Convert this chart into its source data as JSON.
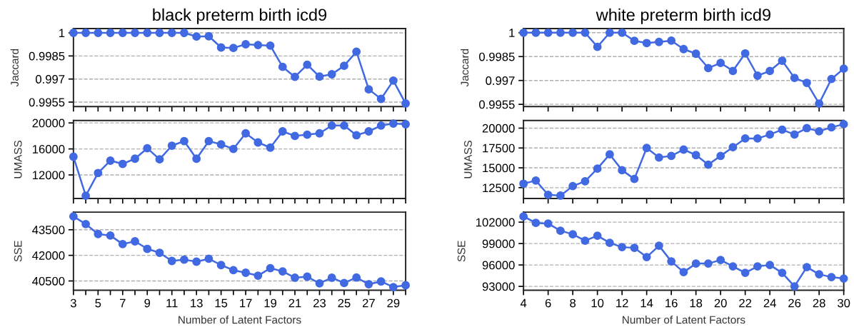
{
  "chart_data": [
    {
      "type": "line",
      "title": "black preterm birth icd9",
      "ylabel": "Jaccard",
      "x": [
        3,
        4,
        5,
        6,
        7,
        8,
        9,
        10,
        11,
        12,
        13,
        14,
        15,
        16,
        17,
        18,
        19,
        20,
        21,
        22,
        23,
        24,
        25,
        26,
        27,
        28,
        29,
        30
      ],
      "series": [
        {
          "color": "#4169e1",
          "values": [
            1,
            1,
            1,
            1,
            1,
            1,
            1,
            1,
            1,
            1,
            0.99976,
            0.99978,
            0.99905,
            0.99902,
            0.99926,
            0.99921,
            0.99917,
            0.99779,
            0.99714,
            0.99793,
            0.99716,
            0.99731,
            0.99786,
            0.99878,
            0.99633,
            0.99571,
            0.9969,
            0.99541
          ]
        }
      ],
      "xlim": [
        3,
        30
      ],
      "xticks": [
        3,
        {
          "value": 4,
          "label": null
        },
        5,
        {
          "value": 6,
          "label": null
        },
        7,
        {
          "value": 8,
          "label": null
        },
        9,
        {
          "value": 10,
          "label": null
        },
        11,
        {
          "value": 12,
          "label": null
        },
        13,
        {
          "value": 14,
          "label": null
        },
        15,
        {
          "value": 16,
          "label": null
        },
        17,
        {
          "value": 18,
          "label": null
        },
        19,
        {
          "value": 20,
          "label": null
        },
        21,
        {
          "value": 22,
          "label": null
        },
        23,
        {
          "value": 24,
          "label": null
        },
        25,
        {
          "value": 26,
          "label": null
        },
        27,
        {
          "value": 28,
          "label": null
        },
        29,
        {
          "value": 30,
          "label": null
        }
      ],
      "ylim": [
        0.99521,
        1.00028
      ],
      "yticks": [
        1,
        0.9985,
        0.997,
        0.9955
      ],
      "tick_labels": "y",
      "grid": "y",
      "marker": "circle",
      "line_style": "solid"
    },
    {
      "type": "line",
      "title": "white preterm birth icd9",
      "ylabel": "Jaccard",
      "x": [
        4,
        5,
        6,
        7,
        8,
        9,
        10,
        11,
        12,
        13,
        14,
        15,
        16,
        17,
        18,
        19,
        20,
        21,
        22,
        23,
        24,
        25,
        26,
        27,
        28,
        29,
        30
      ],
      "series": [
        {
          "color": "#4169e1",
          "values": [
            1,
            1,
            1,
            1,
            1,
            1,
            0.99911,
            1,
            1,
            0.99949,
            0.99935,
            0.99942,
            0.9995,
            0.99897,
            0.99868,
            0.99778,
            0.9981,
            0.9976,
            0.9987,
            0.9973,
            0.9976,
            0.99824,
            0.99716,
            0.99685,
            0.99555,
            0.99709,
            0.99774
          ]
        }
      ],
      "xlim": [
        4,
        30
      ],
      "xticks": [
        {
          "value": 4,
          "label": null
        },
        {
          "value": 6,
          "label": null
        },
        {
          "value": 8,
          "label": null
        },
        {
          "value": 10,
          "label": null
        },
        {
          "value": 12,
          "label": null
        },
        {
          "value": 14,
          "label": null
        },
        {
          "value": 16,
          "label": null
        },
        {
          "value": 18,
          "label": null
        },
        {
          "value": 20,
          "label": null
        },
        {
          "value": 22,
          "label": null
        },
        {
          "value": 24,
          "label": null
        },
        {
          "value": 26,
          "label": null
        },
        {
          "value": 28,
          "label": null
        },
        {
          "value": 30,
          "label": null
        }
      ],
      "ylim": [
        0.99536,
        1.00026
      ],
      "yticks": [
        1,
        0.9985,
        0.997,
        0.9955
      ],
      "tick_labels": "y",
      "grid": "y",
      "marker": "circle",
      "line_style": "solid"
    },
    {
      "type": "line",
      "ylabel": "UMASS",
      "x": [
        3,
        4,
        5,
        6,
        7,
        8,
        9,
        10,
        11,
        12,
        13,
        14,
        15,
        16,
        17,
        18,
        19,
        20,
        21,
        22,
        23,
        24,
        25,
        26,
        27,
        28,
        29,
        30
      ],
      "series": [
        {
          "color": "#4169e1",
          "values": [
            14800,
            8800,
            12300,
            14200,
            13700,
            14500,
            16100,
            14400,
            16500,
            17200,
            14500,
            17200,
            16700,
            16000,
            18400,
            17000,
            16200,
            18700,
            18000,
            18200,
            18400,
            19600,
            19600,
            18100,
            18700,
            19600,
            19900,
            19800
          ]
        }
      ],
      "xlim": [
        3,
        30
      ],
      "xticks": [
        3,
        {
          "value": 4,
          "label": null
        },
        5,
        {
          "value": 6,
          "label": null
        },
        7,
        {
          "value": 8,
          "label": null
        },
        9,
        {
          "value": 10,
          "label": null
        },
        11,
        {
          "value": 12,
          "label": null
        },
        13,
        {
          "value": 14,
          "label": null
        },
        15,
        {
          "value": 16,
          "label": null
        },
        17,
        {
          "value": 18,
          "label": null
        },
        19,
        {
          "value": 20,
          "label": null
        },
        21,
        {
          "value": 22,
          "label": null
        },
        23,
        {
          "value": 24,
          "label": null
        },
        25,
        {
          "value": 26,
          "label": null
        },
        27,
        {
          "value": 28,
          "label": null
        },
        29,
        {
          "value": 30,
          "label": null
        }
      ],
      "ylim": [
        8370,
        20370
      ],
      "yticks": [
        12000,
        16000,
        20000
      ],
      "tick_labels": "y",
      "grid": "y",
      "marker": "circle",
      "line_style": "solid"
    },
    {
      "type": "line",
      "ylabel": "UMASS",
      "x": [
        4,
        5,
        6,
        7,
        8,
        9,
        10,
        11,
        12,
        13,
        14,
        15,
        16,
        17,
        18,
        19,
        20,
        21,
        22,
        23,
        24,
        25,
        26,
        27,
        28,
        29,
        30
      ],
      "series": [
        {
          "color": "#4169e1",
          "values": [
            13000,
            13400,
            11600,
            11500,
            12700,
            13300,
            14900,
            16700,
            14700,
            13600,
            17500,
            16300,
            16500,
            17300,
            16600,
            15400,
            16500,
            17600,
            18700,
            18700,
            19200,
            19800,
            19200,
            20000,
            19600,
            20100,
            20500
          ]
        }
      ],
      "xlim": [
        4,
        30
      ],
      "xticks": [
        {
          "value": 4,
          "label": null
        },
        {
          "value": 6,
          "label": null
        },
        {
          "value": 8,
          "label": null
        },
        {
          "value": 10,
          "label": null
        },
        {
          "value": 12,
          "label": null
        },
        {
          "value": 14,
          "label": null
        },
        {
          "value": 16,
          "label": null
        },
        {
          "value": 18,
          "label": null
        },
        {
          "value": 20,
          "label": null
        },
        {
          "value": 22,
          "label": null
        },
        {
          "value": 24,
          "label": null
        },
        {
          "value": 26,
          "label": null
        },
        {
          "value": 28,
          "label": null
        },
        {
          "value": 30,
          "label": null
        }
      ],
      "ylim": [
        11130,
        20960
      ],
      "yticks": [
        12500,
        15000,
        17500,
        20000
      ],
      "tick_labels": "y",
      "grid": "y",
      "marker": "circle",
      "line_style": "solid"
    },
    {
      "type": "line",
      "ylabel": "SSE",
      "xlabel": "Number of Latent Factors",
      "x": [
        3,
        4,
        5,
        6,
        7,
        8,
        9,
        10,
        11,
        12,
        13,
        14,
        15,
        16,
        17,
        18,
        19,
        20,
        21,
        22,
        23,
        24,
        25,
        26,
        27,
        28,
        29,
        30
      ],
      "series": [
        {
          "color": "#4169e1",
          "values": [
            44280,
            43830,
            43250,
            43160,
            42660,
            42820,
            42380,
            42150,
            41670,
            41750,
            41630,
            41800,
            41430,
            41130,
            40980,
            40810,
            41250,
            41060,
            40690,
            40750,
            40360,
            40690,
            40380,
            40700,
            40310,
            40470,
            40140,
            40250
          ]
        }
      ],
      "xlim": [
        3,
        30
      ],
      "xticks": [
        3,
        {
          "value": 4,
          "label": null
        },
        5,
        {
          "value": 6,
          "label": null
        },
        7,
        {
          "value": 8,
          "label": null
        },
        9,
        {
          "value": 10,
          "label": null
        },
        11,
        {
          "value": 12,
          "label": null
        },
        13,
        {
          "value": 14,
          "label": null
        },
        15,
        {
          "value": 16,
          "label": null
        },
        17,
        {
          "value": 18,
          "label": null
        },
        19,
        {
          "value": 20,
          "label": null
        },
        21,
        {
          "value": 22,
          "label": null
        },
        23,
        {
          "value": 24,
          "label": null
        },
        25,
        {
          "value": 26,
          "label": null
        },
        27,
        {
          "value": 28,
          "label": null
        },
        29,
        {
          "value": 30,
          "label": null
        }
      ],
      "ylim": [
        39960,
        44530
      ],
      "yticks": [
        40500,
        42000,
        43500
      ],
      "grid": "y",
      "marker": "circle",
      "line_style": "solid"
    },
    {
      "type": "line",
      "ylabel": "SSE",
      "xlabel": "Number of Latent Factors",
      "x": [
        4,
        5,
        6,
        7,
        8,
        9,
        10,
        11,
        12,
        13,
        14,
        15,
        16,
        17,
        18,
        19,
        20,
        21,
        22,
        23,
        24,
        25,
        26,
        27,
        28,
        29,
        30
      ],
      "series": [
        {
          "color": "#4169e1",
          "values": [
            102800,
            101900,
            101800,
            100800,
            100300,
            99400,
            100100,
            99100,
            98500,
            98400,
            97100,
            98700,
            96500,
            95000,
            96200,
            96200,
            96700,
            95800,
            94900,
            95800,
            96000,
            94900,
            93000,
            95700,
            94700,
            94300,
            94100
          ]
        }
      ],
      "xlim": [
        4,
        30
      ],
      "xticks": [
        4,
        6,
        8,
        10,
        12,
        14,
        16,
        18,
        20,
        22,
        24,
        26,
        28,
        30
      ],
      "ylim": [
        92470,
        103400
      ],
      "yticks": [
        93000,
        96000,
        99000,
        102000
      ],
      "grid": "y",
      "marker": "circle",
      "line_style": "solid"
    }
  ]
}
